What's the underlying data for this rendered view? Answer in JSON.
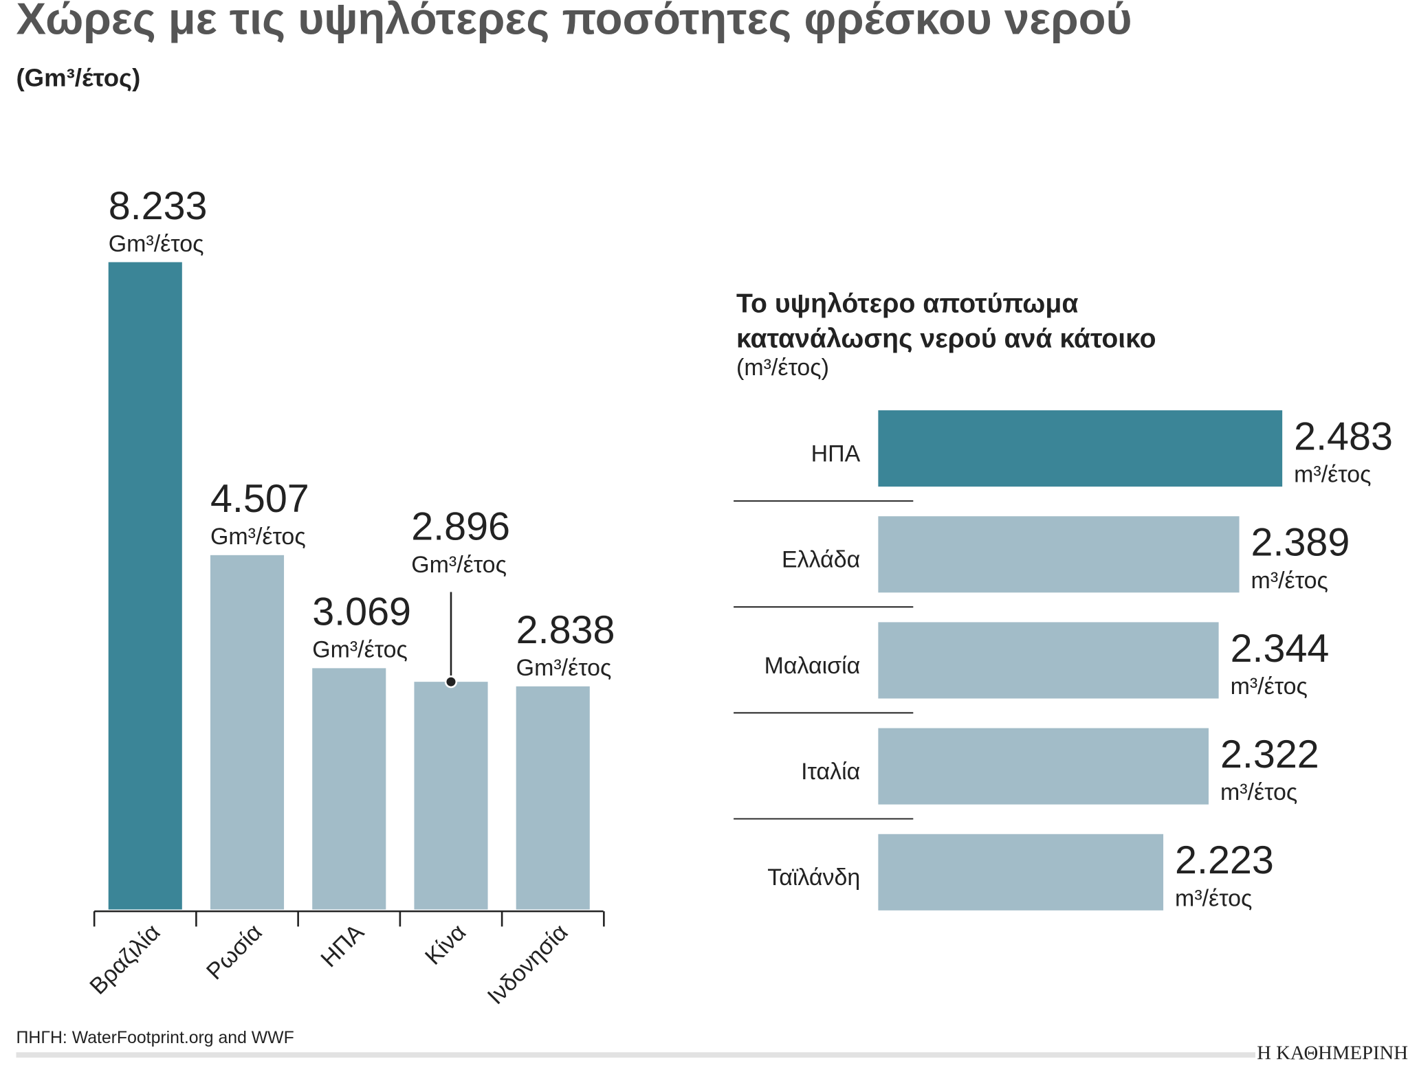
{
  "chart_data": [
    {
      "type": "bar",
      "title": "Χώρες με τις υψηλότερες ποσότητες φρέσκου νερού",
      "subtitle": "(Gm³/έτος)",
      "categories": [
        "Βραζιλία",
        "Ρωσία",
        "ΗΠΑ",
        "Κίνα",
        "Ινδονησία"
      ],
      "values": [
        8233,
        4507,
        3069,
        2896,
        2838
      ],
      "value_labels": [
        "8.233",
        "4.507",
        "3.069",
        "2.896",
        "2.838"
      ],
      "unit_label": "Gm³/έτος",
      "colors": [
        "#3b8597",
        "#a2bcc8",
        "#a2bcc8",
        "#a2bcc8",
        "#a2bcc8"
      ]
    },
    {
      "type": "hbar",
      "title": [
        "Το υψηλότερο αποτύπωμα",
        "κατανάλωσης νερού ανά κάτοικο"
      ],
      "subtitle": "(m³/έτος)",
      "categories": [
        "ΗΠΑ",
        "Ελλάδα",
        "Μαλαισία",
        "Ιταλία",
        "Ταϊλάνδη"
      ],
      "values": [
        2483,
        2389,
        2344,
        2322,
        2223
      ],
      "value_labels": [
        "2.483",
        "2.389",
        "2.344",
        "2.322",
        "2.223"
      ],
      "unit_label": "m³/έτος",
      "xlim": [
        1600,
        2483
      ],
      "colors": [
        "#3b8597",
        "#a2bcc8",
        "#a2bcc8",
        "#a2bcc8",
        "#a2bcc8"
      ]
    }
  ],
  "source": "ΠΗΓΗ: WaterFootprint.org and WWF",
  "brand": "Η ΚΑΘΗΜΕΡΙΝΗ"
}
